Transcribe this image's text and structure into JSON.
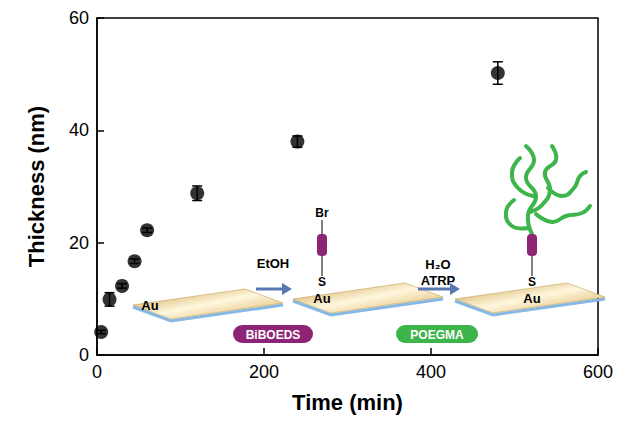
{
  "chart_data": {
    "type": "scatter",
    "x_label": "Time (min)",
    "y_label": "Thickness (nm)",
    "x": [
      5,
      15,
      30,
      45,
      60,
      120,
      240,
      480
    ],
    "values": [
      4.1,
      9.9,
      12.3,
      16.7,
      22.2,
      28.8,
      38.0,
      50.2
    ],
    "errors": [
      0.3,
      1.2,
      0.4,
      0.4,
      0.4,
      1.3,
      1.0,
      2.0
    ],
    "color": "#000000",
    "marker": "circle",
    "xlim": [
      0,
      600
    ],
    "xticks": [
      0,
      200,
      400,
      600
    ],
    "ylim": [
      0,
      60
    ],
    "yticks": [
      0,
      20,
      40,
      60
    ],
    "grid": false,
    "annotations": {
      "substrate": "Au",
      "step1_solvent": "EtOH",
      "step1_reagent": "BiBOEDS",
      "step2_conditions": [
        "H₂O",
        "ATRP"
      ],
      "step2_product": "POEGMA",
      "terminal_atom": "Br",
      "anchor_atom": "S"
    }
  }
}
